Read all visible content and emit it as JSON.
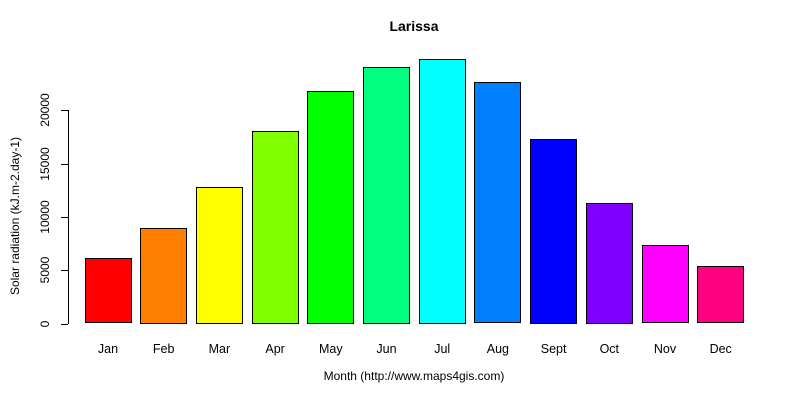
{
  "chart_data": {
    "type": "bar",
    "title": "Larissa",
    "xlabel": "Month (http://www.maps4gis.com)",
    "ylabel": "Solar radiation (kJ.m-2.day-1)",
    "categories": [
      "Jan",
      "Feb",
      "Mar",
      "Apr",
      "May",
      "Jun",
      "Jul",
      "Aug",
      "Sept",
      "Oct",
      "Nov",
      "Dec"
    ],
    "values": [
      6150,
      8950,
      12800,
      18100,
      21800,
      24050,
      24800,
      22650,
      17300,
      11300,
      7350,
      5400
    ],
    "colors": [
      "#FF0000",
      "#FF8000",
      "#FFFF00",
      "#80FF00",
      "#00FF00",
      "#00FF80",
      "#00FFFF",
      "#0080FF",
      "#0000FF",
      "#8000FF",
      "#FF00FF",
      "#FF0080"
    ],
    "yticks": [
      0,
      5000,
      10000,
      15000,
      20000
    ],
    "ylim": [
      0,
      25200
    ],
    "grid": false,
    "legend": null,
    "bar_border_color": "#000000",
    "background_color": "#FFFFFF",
    "text_color": "#000000"
  }
}
